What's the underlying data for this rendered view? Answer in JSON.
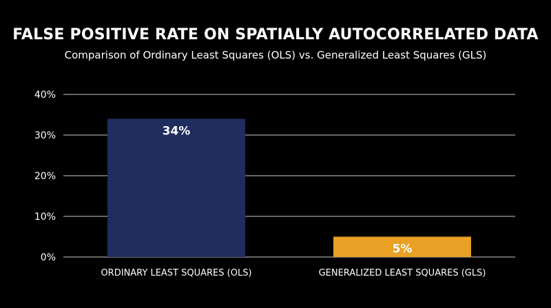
{
  "chart_data": {
    "type": "bar",
    "title": "FALSE POSITIVE RATE ON SPATIALLY AUTOCORRELATED DATA",
    "subtitle": "Comparison of Ordinary Least Squares (OLS) vs. Generalized Least Squares (GLS)",
    "categories": [
      "ORDINARY LEAST SQUARES (OLS)",
      "GENERALIZED LEAST SQUARES (GLS)"
    ],
    "values": [
      34,
      5
    ],
    "data_labels": [
      "34%",
      "5%"
    ],
    "bar_colors": [
      "#1f2d5e",
      "#e8a124"
    ],
    "ylim": [
      0,
      40
    ],
    "yticks": [
      0,
      10,
      20,
      30,
      40
    ],
    "ytick_labels": [
      "0%",
      "10%",
      "20%",
      "30%",
      "40%"
    ],
    "grid": true,
    "gridline_color": "#cccccc",
    "background": "#000000",
    "xlabel": "",
    "ylabel": ""
  }
}
